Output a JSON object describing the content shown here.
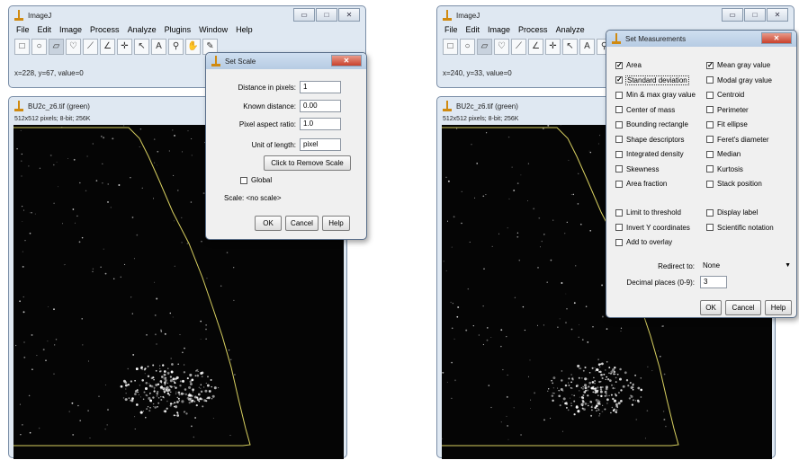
{
  "left": {
    "imagej": {
      "title": "ImageJ",
      "menu": [
        "File",
        "Edit",
        "Image",
        "Process",
        "Analyze",
        "Plugins",
        "Window",
        "Help"
      ],
      "status": "x=228, y=67, value=0"
    },
    "image_window": {
      "title": "BU2c_z6.tif (green)",
      "info": "512x512 pixels; 8-bit; 256K"
    },
    "set_scale": {
      "title": "Set Scale",
      "distance_label": "Distance in pixels:",
      "distance_value": "1",
      "known_label": "Known distance:",
      "known_value": "0.00",
      "aspect_label": "Pixel aspect ratio:",
      "aspect_value": "1.0",
      "unit_label": "Unit of length:",
      "unit_value": "pixel",
      "remove_scale": "Click to Remove Scale",
      "global_label": "Global",
      "scale_text": "Scale: <no scale>",
      "ok": "OK",
      "cancel": "Cancel",
      "help": "Help"
    }
  },
  "right": {
    "imagej": {
      "title": "ImageJ",
      "menu": [
        "File",
        "Edit",
        "Image",
        "Process",
        "Analyze"
      ],
      "status": "x=240, y=33, value=0"
    },
    "image_window": {
      "title": "BU2c_z6.tif (green)",
      "info": "512x512 pixels; 8-bit; 256K"
    },
    "set_measurements": {
      "title": "Set Measurements",
      "col1": [
        {
          "label": "Area",
          "checked": true
        },
        {
          "label": "Standard deviation",
          "checked": true
        },
        {
          "label": "Min & max gray value",
          "checked": false
        },
        {
          "label": "Center of mass",
          "checked": false
        },
        {
          "label": "Bounding rectangle",
          "checked": false
        },
        {
          "label": "Shape descriptors",
          "checked": false
        },
        {
          "label": "Integrated density",
          "checked": false
        },
        {
          "label": "Skewness",
          "checked": false
        },
        {
          "label": "Area fraction",
          "checked": false
        }
      ],
      "col2": [
        {
          "label": "Mean gray value",
          "checked": true
        },
        {
          "label": "Modal gray value",
          "checked": false
        },
        {
          "label": "Centroid",
          "checked": false
        },
        {
          "label": "Perimeter",
          "checked": false
        },
        {
          "label": "Fit ellipse",
          "checked": false
        },
        {
          "label": "Feret's diameter",
          "checked": false
        },
        {
          "label": "Median",
          "checked": false
        },
        {
          "label": "Kurtosis",
          "checked": false
        },
        {
          "label": "Stack position",
          "checked": false
        }
      ],
      "opt1": [
        {
          "label": "Limit to threshold",
          "checked": false
        },
        {
          "label": "Invert Y coordinates",
          "checked": false
        },
        {
          "label": "Add to overlay",
          "checked": false
        }
      ],
      "opt2": [
        {
          "label": "Display label",
          "checked": false
        },
        {
          "label": "Scientific notation",
          "checked": false
        }
      ],
      "redirect_label": "Redirect to:",
      "redirect_value": "None",
      "decimal_label": "Decimal places (0-9):",
      "decimal_value": "3",
      "ok": "OK",
      "cancel": "Cancel",
      "help": "Help"
    }
  },
  "icons": {
    "toolbar": [
      "rectangle-tool-icon",
      "oval-tool-icon",
      "polygon-tool-icon",
      "freehand-tool-icon",
      "line-tool-icon",
      "angle-tool-icon",
      "point-tool-icon",
      "wand-tool-icon",
      "text-tool-icon",
      "magnifier-tool-icon",
      "hand-tool-icon",
      "dropper-tool-icon"
    ]
  },
  "colors": {
    "roi_outline": "#d8d060",
    "image_background": "#050505",
    "window_frame": "#dfe8f2"
  }
}
